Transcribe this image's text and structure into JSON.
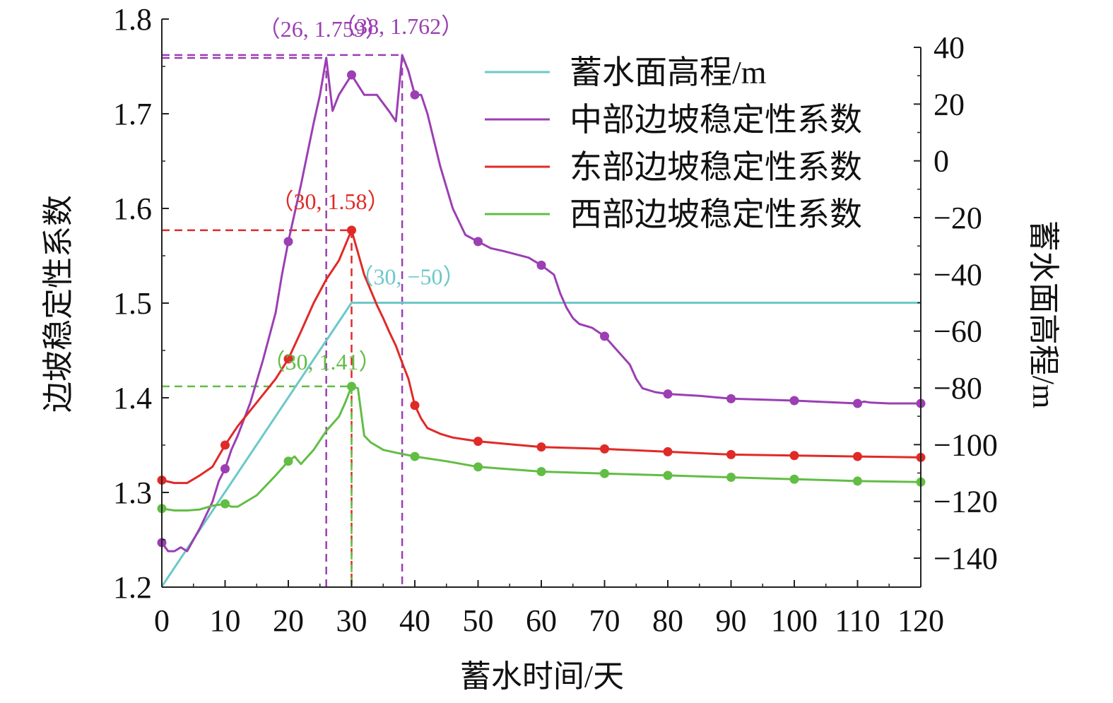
{
  "chart_data": {
    "type": "line",
    "xlabel": "蓄水时间/天",
    "ylabel": "边坡稳定性系数",
    "y2label": "蓄水面高程/m",
    "xlim": [
      0,
      120
    ],
    "ylim": [
      1.2,
      1.8
    ],
    "y2lim": [
      -150,
      40
    ],
    "xticks": [
      "0",
      "10",
      "20",
      "30",
      "40",
      "50",
      "60",
      "70",
      "80",
      "90",
      "100",
      "110",
      "120"
    ],
    "yticks": [
      "1.2",
      "1.3",
      "1.4",
      "1.5",
      "1.6",
      "1.7",
      "1.8"
    ],
    "y2ticks": [
      "40",
      "20",
      "0",
      "−20",
      "−40",
      "−60",
      "−80",
      "−100",
      "−120",
      "−140"
    ],
    "grid": false,
    "legend_position": "top-right",
    "legend": [
      "蓄水面高程/m",
      "中部边坡稳定性系数",
      "东部边坡稳定性系数",
      "西部边坡稳定性系数"
    ],
    "series": [
      {
        "name": "蓄水面高程/m",
        "axis": "right",
        "color": "#6cc8c8",
        "markers": false,
        "x": [
          0,
          30,
          120
        ],
        "y": [
          -150,
          -50,
          -50
        ]
      },
      {
        "name": "中部边坡稳定性系数",
        "axis": "left",
        "color": "#9b3fb3",
        "markers": true,
        "x": [
          0,
          1,
          2,
          3,
          4,
          6,
          8,
          9,
          10,
          11,
          12,
          14,
          16,
          18,
          19,
          20,
          22,
          24,
          25,
          26,
          27,
          28,
          30,
          32,
          34,
          36,
          37,
          38,
          39,
          40,
          41,
          42,
          44,
          46,
          48,
          50,
          52,
          54,
          58,
          60,
          62,
          63,
          64,
          65,
          66,
          68,
          70,
          72,
          74,
          75,
          76,
          78,
          80,
          85,
          90,
          100,
          110,
          111,
          112,
          115,
          120
        ],
        "y": [
          1.247,
          1.238,
          1.238,
          1.242,
          1.238,
          1.262,
          1.29,
          1.312,
          1.325,
          1.345,
          1.36,
          1.395,
          1.44,
          1.49,
          1.53,
          1.565,
          1.625,
          1.69,
          1.72,
          1.759,
          1.703,
          1.72,
          1.741,
          1.72,
          1.72,
          1.702,
          1.692,
          1.762,
          1.745,
          1.72,
          1.72,
          1.7,
          1.645,
          1.6,
          1.572,
          1.565,
          1.558,
          1.555,
          1.548,
          1.54,
          1.53,
          1.51,
          1.495,
          1.484,
          1.478,
          1.474,
          1.465,
          1.45,
          1.435,
          1.42,
          1.41,
          1.406,
          1.404,
          1.402,
          1.399,
          1.397,
          1.394,
          1.396,
          1.395,
          1.394,
          1.394
        ],
        "marker_x": [
          0,
          10,
          20,
          30,
          40,
          50,
          60,
          70,
          80,
          90,
          100,
          110,
          120
        ]
      },
      {
        "name": "东部边坡稳定性系数",
        "axis": "left",
        "color": "#e02a27",
        "markers": true,
        "x": [
          0,
          2,
          4,
          6,
          8,
          10,
          12,
          15,
          18,
          20,
          22,
          24,
          26,
          28,
          30,
          32,
          34,
          35,
          36,
          37,
          38,
          39,
          40,
          41,
          42,
          44,
          46,
          48,
          50,
          55,
          60,
          70,
          80,
          90,
          100,
          110,
          120
        ],
        "y": [
          1.313,
          1.31,
          1.31,
          1.318,
          1.327,
          1.35,
          1.37,
          1.395,
          1.42,
          1.441,
          1.47,
          1.5,
          1.525,
          1.545,
          1.577,
          1.53,
          1.498,
          1.484,
          1.469,
          1.455,
          1.437,
          1.42,
          1.392,
          1.378,
          1.368,
          1.362,
          1.358,
          1.356,
          1.354,
          1.351,
          1.348,
          1.346,
          1.343,
          1.34,
          1.339,
          1.338,
          1.337
        ],
        "marker_x": [
          0,
          10,
          20,
          30,
          40,
          50,
          60,
          70,
          80,
          90,
          100,
          110,
          120
        ]
      },
      {
        "name": "西部边坡稳定性系数",
        "axis": "left",
        "color": "#62bd45",
        "markers": true,
        "x": [
          0,
          2,
          4,
          6,
          8,
          10,
          11,
          12,
          15,
          18,
          20,
          21,
          22,
          24,
          26,
          28,
          29,
          30,
          31,
          32,
          33,
          35,
          37,
          40,
          45,
          50,
          60,
          70,
          80,
          90,
          100,
          110,
          120
        ],
        "y": [
          1.283,
          1.281,
          1.281,
          1.282,
          1.286,
          1.288,
          1.285,
          1.285,
          1.297,
          1.318,
          1.333,
          1.338,
          1.33,
          1.345,
          1.365,
          1.38,
          1.395,
          1.412,
          1.41,
          1.36,
          1.353,
          1.345,
          1.342,
          1.338,
          1.333,
          1.327,
          1.322,
          1.32,
          1.318,
          1.316,
          1.314,
          1.312,
          1.311
        ],
        "marker_x": [
          0,
          10,
          20,
          30,
          40,
          50,
          60,
          70,
          80,
          90,
          100,
          110,
          120
        ]
      }
    ],
    "annotations": [
      {
        "text": "（26, 1.759）",
        "x": 26,
        "y": 1.759,
        "axis": "left",
        "color": "#9b3fb3"
      },
      {
        "text": "（38, 1.762）",
        "x": 38,
        "y": 1.762,
        "axis": "left",
        "color": "#9b3fb3"
      },
      {
        "text": "（30, 1.58）",
        "x": 30,
        "y": 1.577,
        "axis": "left",
        "color": "#e02a27"
      },
      {
        "text": "（30, −50）",
        "x": 30,
        "y": -50,
        "axis": "right",
        "color": "#6cc8c8"
      },
      {
        "text": "（30, 1.41）",
        "x": 30,
        "y": 1.412,
        "axis": "left",
        "color": "#62bd45"
      }
    ]
  }
}
